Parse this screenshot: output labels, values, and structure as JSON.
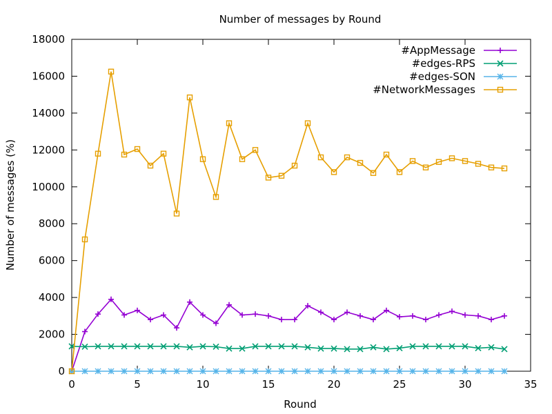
{
  "chart_data": {
    "type": "line",
    "title": "Number of messages by Round",
    "xlabel": "Round",
    "ylabel": "Number of messages (%)",
    "xlim": [
      0,
      35
    ],
    "ylim": [
      0,
      18000
    ],
    "xticks": [
      0,
      5,
      10,
      15,
      20,
      25,
      30,
      35
    ],
    "yticks": [
      0,
      2000,
      4000,
      6000,
      8000,
      10000,
      12000,
      14000,
      16000,
      18000
    ],
    "grid": false,
    "legend_position": "top-right",
    "x": [
      0,
      1,
      2,
      3,
      4,
      5,
      6,
      7,
      8,
      9,
      10,
      11,
      12,
      13,
      14,
      15,
      16,
      17,
      18,
      19,
      20,
      21,
      22,
      23,
      24,
      25,
      26,
      27,
      28,
      29,
      30,
      31,
      32,
      33
    ],
    "series": [
      {
        "name": "#AppMessage",
        "color": "#9400d3",
        "marker": "plus",
        "values": [
          0,
          2150,
          3100,
          3900,
          3050,
          3300,
          2800,
          3050,
          2350,
          3750,
          3050,
          2600,
          3600,
          3050,
          3100,
          3000,
          2800,
          2800,
          3550,
          3200,
          2800,
          3200,
          3000,
          2800,
          3300,
          2950,
          3000,
          2800,
          3050,
          3250,
          3050,
          3000,
          2800,
          3000
        ]
      },
      {
        "name": "#edges-RPS",
        "color": "#009e73",
        "marker": "cross",
        "values": [
          1350,
          1330,
          1350,
          1350,
          1350,
          1350,
          1350,
          1350,
          1350,
          1300,
          1350,
          1330,
          1230,
          1230,
          1350,
          1350,
          1350,
          1350,
          1300,
          1230,
          1230,
          1200,
          1200,
          1300,
          1200,
          1250,
          1350,
          1350,
          1350,
          1350,
          1350,
          1250,
          1300,
          1200
        ]
      },
      {
        "name": "#edges-SON",
        "color": "#56b4e9",
        "marker": "star",
        "values": [
          0,
          0,
          0,
          0,
          0,
          0,
          0,
          0,
          0,
          0,
          0,
          0,
          0,
          0,
          0,
          0,
          0,
          0,
          0,
          0,
          0,
          0,
          0,
          0,
          0,
          0,
          0,
          0,
          0,
          0,
          0,
          0,
          0,
          0
        ]
      },
      {
        "name": "#NetworkMessages",
        "color": "#e69f00",
        "marker": "square",
        "values": [
          0,
          7150,
          11800,
          16250,
          11750,
          12050,
          11150,
          11800,
          8550,
          14850,
          11500,
          9450,
          13450,
          11500,
          12000,
          10500,
          10600,
          11150,
          13450,
          11600,
          10800,
          11600,
          11300,
          10750,
          11750,
          10800,
          11400,
          11050,
          11350,
          11550,
          11400,
          11250,
          11050,
          11000
        ]
      }
    ]
  }
}
